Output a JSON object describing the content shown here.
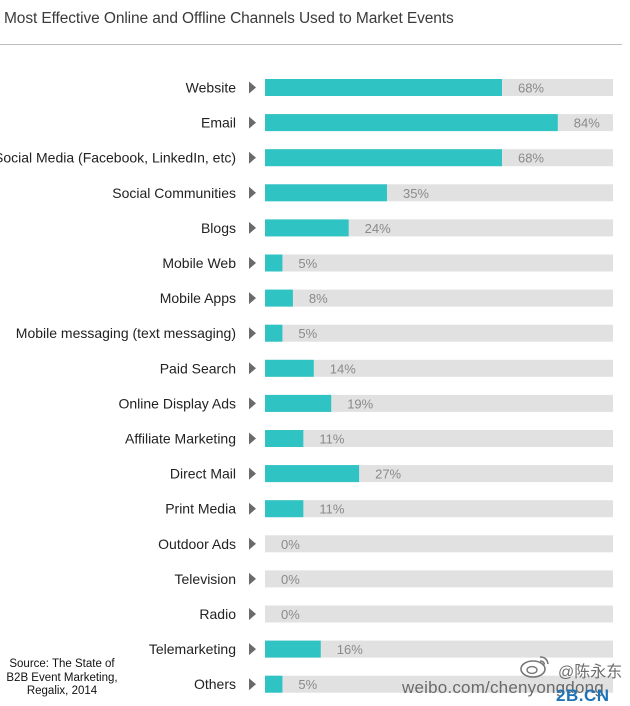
{
  "title": "Most Effective Online and Offline Channels Used to Market Events",
  "source": {
    "lines": [
      "Source: The State of",
      "B2B Event Marketing,",
      "Regalix, 2014"
    ]
  },
  "watermark": {
    "weibo_url": "weibo.com/chenyongdong",
    "handle": "@陈永东",
    "site": "2B.CN"
  },
  "colors": {
    "bar": "#2fc3c3",
    "track": "#e1e1e1",
    "marker": "#6a6a6a",
    "title_text": "#3b3b3b"
  },
  "chart_data": {
    "type": "bar",
    "orientation": "horizontal",
    "title": "Most Effective Online and Offline Channels Used to Market Events",
    "xlim": [
      0,
      100
    ],
    "grid": false,
    "legend": "none",
    "categories": [
      "Website",
      "Email",
      "Social Media (Facebook, LinkedIn, etc)",
      "Social Communities",
      "Blogs",
      "Mobile Web",
      "Mobile Apps",
      "Mobile messaging (text messaging)",
      "Paid Search",
      "Online Display Ads",
      "Affiliate Marketing",
      "Direct Mail",
      "Print Media",
      "Outdoor Ads",
      "Television",
      "Radio",
      "Telemarketing",
      "Others"
    ],
    "values": [
      68,
      84,
      68,
      35,
      24,
      5,
      8,
      5,
      14,
      19,
      11,
      27,
      11,
      0,
      0,
      0,
      16,
      5
    ],
    "value_labels": [
      "68%",
      "84%",
      "68%",
      "35%",
      "24%",
      "5%",
      "8%",
      "5%",
      "14%",
      "19%",
      "11%",
      "27%",
      "11%",
      "0%",
      "0%",
      "0%",
      "16%",
      "5%"
    ]
  }
}
